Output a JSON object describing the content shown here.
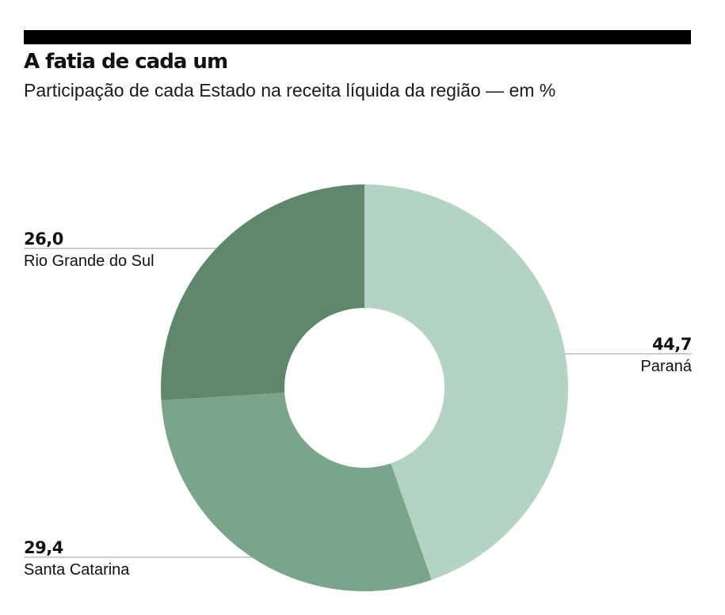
{
  "chart_data": {
    "type": "pie",
    "title": "A fatia de cada um",
    "subtitle": "Participação de cada Estado na receita líquida da região — em %",
    "slices": [
      {
        "label": "Paraná",
        "value": 44.7,
        "display": "44,7",
        "color": "#b5d3c3",
        "label_side": "right"
      },
      {
        "label": "Santa Catarina",
        "value": 29.4,
        "display": "29,4",
        "color": "#7ba58b",
        "label_side": "left"
      },
      {
        "label": "Rio Grande do Sul",
        "value": 26.0,
        "display": "26,0",
        "color": "#5f876b",
        "label_side": "left"
      }
    ]
  }
}
